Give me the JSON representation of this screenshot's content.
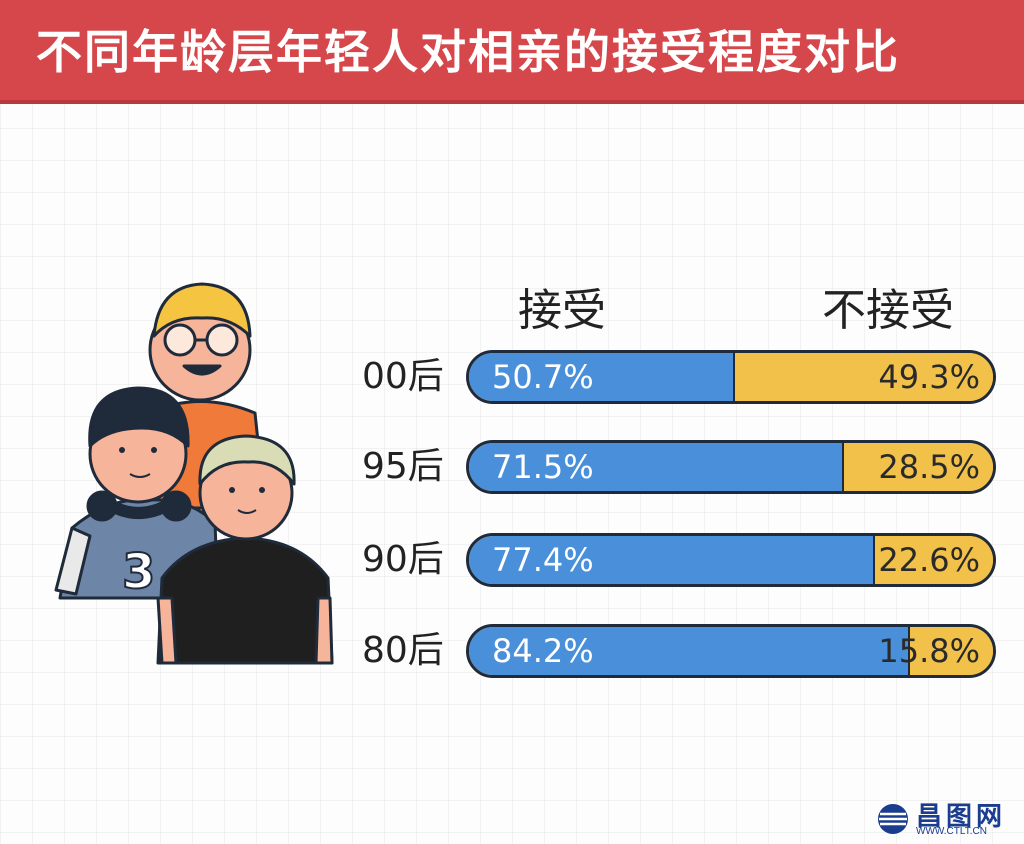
{
  "header": {
    "title": "不同年龄层年轻人对相亲的接受程度对比"
  },
  "chart_data": {
    "type": "bar",
    "stacked": true,
    "orientation": "horizontal",
    "series": [
      {
        "name": "接受",
        "color": "#4a8fd9"
      },
      {
        "name": "不接受",
        "color": "#f2c14a"
      }
    ],
    "rows": [
      {
        "label": "00后",
        "accept": 50.7,
        "reject": 49.3,
        "accept_text": "50.7%",
        "reject_text": "49.3%"
      },
      {
        "label": "95后",
        "accept": 71.5,
        "reject": 28.5,
        "accept_text": "71.5%",
        "reject_text": "28.5%"
      },
      {
        "label": "90后",
        "accept": 77.4,
        "reject": 22.6,
        "accept_text": "77.4%",
        "reject_text": "22.6%"
      },
      {
        "label": "80后",
        "accept": 84.2,
        "reject": 15.8,
        "accept_text": "84.2%",
        "reject_text": "15.8%"
      }
    ]
  },
  "watermark": {
    "name": "昌图网",
    "url": "WWW.CTLT.CN"
  }
}
